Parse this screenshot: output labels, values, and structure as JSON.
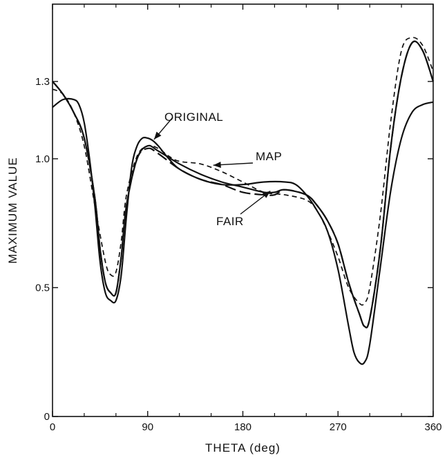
{
  "chart_data": {
    "type": "line",
    "title": "",
    "xlabel": "THETA (deg)",
    "ylabel": "MAXIMUM VALUE",
    "xlim": [
      0,
      360
    ],
    "ylim": [
      0,
      1.6
    ],
    "xticks": [
      0,
      90,
      180,
      270,
      360
    ],
    "xtick_labels": [
      "0",
      "90",
      "180",
      "270",
      "360"
    ],
    "yticks": [
      0,
      0.5,
      1.0,
      1.3
    ],
    "ytick_labels": [
      "0",
      "0.5",
      "1.0",
      "1.3"
    ],
    "grid": false,
    "legend": "none",
    "line_color": "#111111",
    "series": [
      {
        "name": "ORIGINAL",
        "style": "solid",
        "x": [
          0,
          10,
          20,
          25,
          30,
          35,
          40,
          45,
          50,
          55,
          60,
          65,
          70,
          75,
          80,
          85,
          90,
          95,
          100,
          110,
          120,
          140,
          160,
          180,
          200,
          220,
          230,
          240,
          250,
          260,
          270,
          280,
          285,
          290,
          295,
          300,
          310,
          320,
          330,
          340,
          350,
          360
        ],
        "y": [
          1.2,
          1.23,
          1.23,
          1.21,
          1.14,
          1.0,
          0.82,
          0.6,
          0.48,
          0.45,
          0.45,
          0.55,
          0.78,
          0.97,
          1.05,
          1.08,
          1.08,
          1.07,
          1.05,
          1.0,
          0.96,
          0.92,
          0.9,
          0.9,
          0.91,
          0.91,
          0.9,
          0.86,
          0.8,
          0.72,
          0.57,
          0.35,
          0.25,
          0.21,
          0.21,
          0.28,
          0.58,
          0.88,
          1.08,
          1.18,
          1.21,
          1.22
        ]
      },
      {
        "name": "",
        "style": "solid",
        "x": [
          0,
          10,
          20,
          30,
          40,
          45,
          50,
          55,
          60,
          65,
          70,
          80,
          90,
          100,
          120,
          140,
          160,
          180,
          200,
          210,
          220,
          240,
          250,
          260,
          270,
          280,
          290,
          295,
          300,
          310,
          320,
          330,
          340,
          350,
          360
        ],
        "y": [
          1.3,
          1.25,
          1.18,
          1.08,
          0.85,
          0.65,
          0.52,
          0.48,
          0.48,
          0.62,
          0.82,
          1.0,
          1.05,
          1.03,
          0.98,
          0.94,
          0.91,
          0.89,
          0.87,
          0.87,
          0.88,
          0.86,
          0.82,
          0.76,
          0.67,
          0.52,
          0.4,
          0.35,
          0.38,
          0.65,
          1.05,
          1.32,
          1.45,
          1.42,
          1.3
        ]
      },
      {
        "name": "FAIR",
        "style": "longdash",
        "x": [
          0,
          10,
          20,
          30,
          40,
          45,
          50,
          55,
          60,
          65,
          70,
          80,
          90,
          100,
          120,
          140,
          160,
          180,
          200,
          210,
          220,
          240,
          250,
          260,
          270,
          280,
          290,
          295,
          300,
          310,
          320,
          330,
          340,
          350,
          360
        ],
        "y": [
          1.3,
          1.25,
          1.18,
          1.08,
          0.85,
          0.65,
          0.52,
          0.48,
          0.48,
          0.62,
          0.82,
          1.0,
          1.04,
          1.02,
          0.96,
          0.92,
          0.9,
          0.87,
          0.86,
          0.86,
          0.88,
          0.86,
          0.82,
          0.76,
          0.67,
          0.52,
          0.4,
          0.35,
          0.38,
          0.65,
          1.05,
          1.32,
          1.45,
          1.42,
          1.3
        ]
      },
      {
        "name": "MAP",
        "style": "dashed",
        "x": [
          0,
          10,
          20,
          30,
          40,
          50,
          55,
          60,
          65,
          70,
          80,
          90,
          100,
          110,
          120,
          140,
          160,
          180,
          200,
          220,
          240,
          250,
          260,
          270,
          280,
          290,
          295,
          300,
          310,
          320,
          330,
          340,
          350,
          360
        ],
        "y": [
          1.27,
          1.25,
          1.18,
          1.05,
          0.82,
          0.6,
          0.55,
          0.56,
          0.68,
          0.86,
          1.01,
          1.05,
          1.04,
          1.01,
          0.99,
          0.98,
          0.95,
          0.91,
          0.87,
          0.86,
          0.84,
          0.8,
          0.72,
          0.62,
          0.5,
          0.44,
          0.44,
          0.5,
          0.78,
          1.15,
          1.42,
          1.47,
          1.44,
          1.34
        ]
      }
    ],
    "annotations": [
      {
        "label": "ORIGINAL",
        "series": "ORIGINAL"
      },
      {
        "label": "MAP",
        "series": "MAP"
      },
      {
        "label": "FAIR",
        "series": "FAIR"
      }
    ]
  }
}
